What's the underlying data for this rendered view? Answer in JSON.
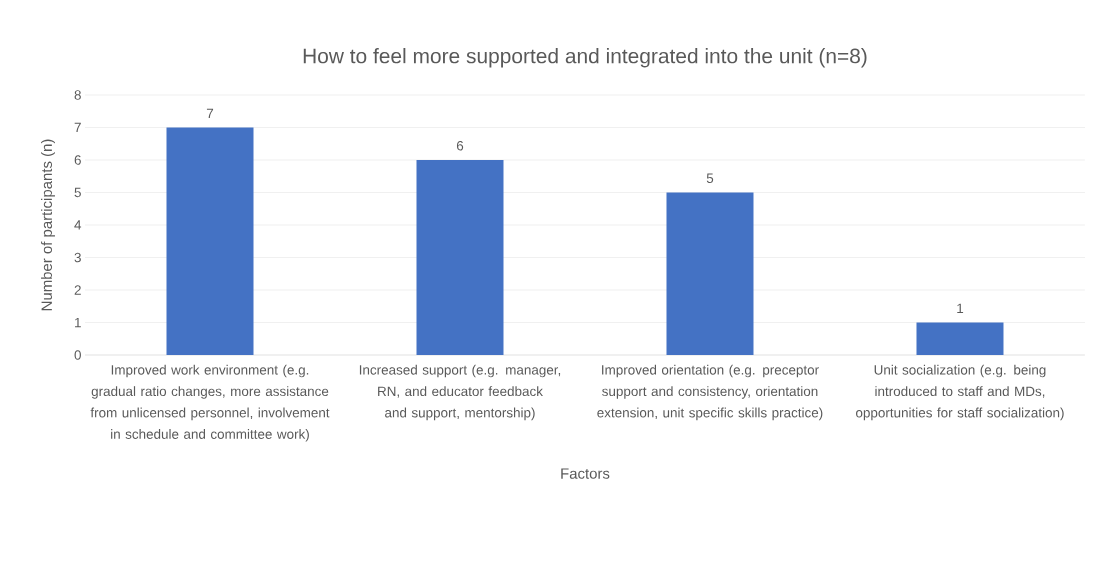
{
  "chart_data": {
    "type": "bar",
    "title": "How to feel more supported and integrated into the unit (n=8)",
    "xlabel": "Factors",
    "ylabel": "Number of participants (n)",
    "categories": [
      "Improved work environment (e.g. gradual ratio changes, more assistance from unlicensed personnel, involvement in schedule and committee work)",
      "Increased support (e.g. manager, RN, and educator feedback and support, mentorship)",
      "Improved orientation (e.g. preceptor support and consistency, orientation extension, unit specific skills practice)",
      "Unit socialization (e.g. being introduced to staff and MDs, opportunities for staff socialization)"
    ],
    "values": [
      7,
      6,
      5,
      1
    ],
    "color": "#4472c4",
    "ylim": [
      0,
      8
    ],
    "yticks": [
      0,
      1,
      2,
      3,
      4,
      5,
      6,
      7,
      8
    ],
    "grid": "y",
    "data_labels": true
  }
}
